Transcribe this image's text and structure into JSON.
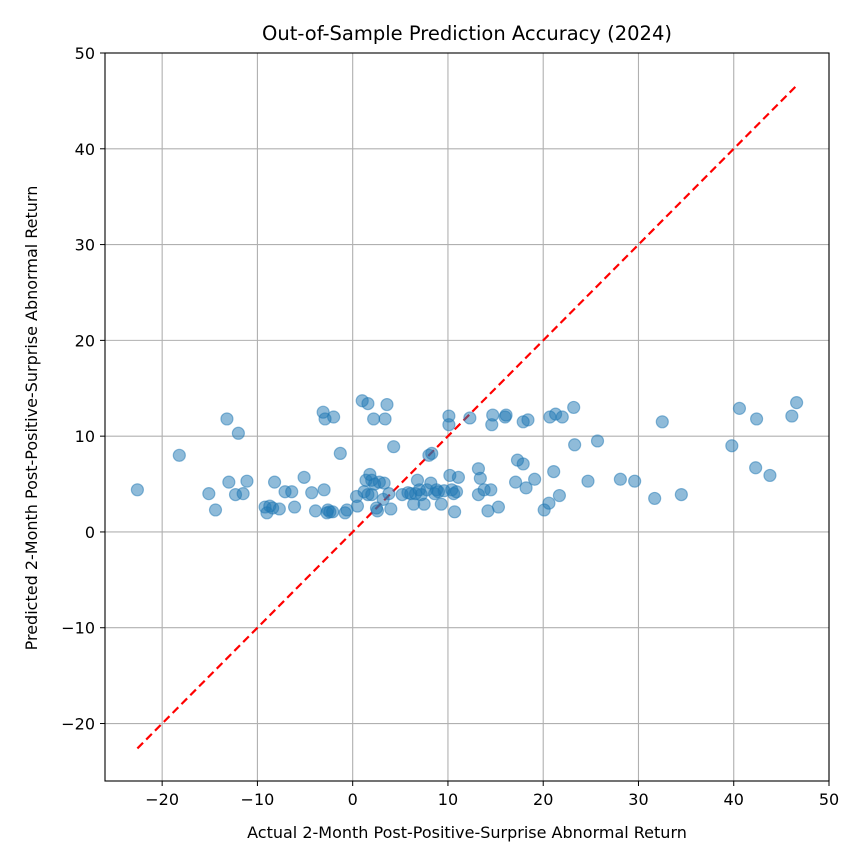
{
  "chart_data": {
    "type": "scatter",
    "title": "Out-of-Sample Prediction Accuracy (2024)",
    "xlabel": "Actual 2-Month Post-Positive-Surprise Abnormal Return",
    "ylabel": "Predicted 2-Month Post-Positive-Surprise Abnormal Return",
    "xlim": [
      -26,
      50
    ],
    "ylim": [
      -26,
      50
    ],
    "xticks": [
      -20,
      -10,
      0,
      10,
      20,
      30,
      40,
      50
    ],
    "yticks": [
      -20,
      -10,
      0,
      10,
      20,
      30,
      40,
      50
    ],
    "grid": true,
    "point_color": "#1f77b4",
    "reference_line": {
      "style": "dashed",
      "color": "#ff0000",
      "from": [
        -22.6,
        -22.6
      ],
      "to": [
        46.6,
        46.6
      ]
    },
    "points": [
      [
        -22.6,
        4.4
      ],
      [
        -18.2,
        8.0
      ],
      [
        -15.1,
        4.0
      ],
      [
        -14.4,
        2.3
      ],
      [
        -13.2,
        11.8
      ],
      [
        -13.0,
        5.2
      ],
      [
        -12.3,
        3.9
      ],
      [
        -12.0,
        10.3
      ],
      [
        -11.5,
        4.0
      ],
      [
        -11.1,
        5.3
      ],
      [
        -9.2,
        2.6
      ],
      [
        -9.0,
        2.0
      ],
      [
        -8.7,
        2.7
      ],
      [
        -8.4,
        2.5
      ],
      [
        -8.2,
        5.2
      ],
      [
        -7.7,
        2.4
      ],
      [
        -7.1,
        4.2
      ],
      [
        -6.4,
        4.2
      ],
      [
        -6.1,
        2.6
      ],
      [
        -5.1,
        5.7
      ],
      [
        -4.3,
        4.1
      ],
      [
        -3.9,
        2.2
      ],
      [
        -3.1,
        12.5
      ],
      [
        -3.0,
        4.4
      ],
      [
        -2.9,
        11.8
      ],
      [
        -2.6,
        2.3
      ],
      [
        -2.7,
        2.0
      ],
      [
        -2.4,
        2.1
      ],
      [
        -2.1,
        2.1
      ],
      [
        -2.0,
        12.0
      ],
      [
        -1.3,
        8.2
      ],
      [
        -0.8,
        2.0
      ],
      [
        -0.6,
        2.3
      ],
      [
        0.4,
        3.7
      ],
      [
        0.5,
        2.7
      ],
      [
        1.0,
        13.7
      ],
      [
        1.2,
        4.2
      ],
      [
        1.4,
        5.4
      ],
      [
        1.6,
        13.4
      ],
      [
        1.8,
        6.0
      ],
      [
        1.6,
        3.9
      ],
      [
        2.0,
        3.9
      ],
      [
        2.0,
        5.4
      ],
      [
        2.2,
        11.8
      ],
      [
        2.3,
        5.0
      ],
      [
        2.5,
        2.5
      ],
      [
        2.6,
        2.2
      ],
      [
        2.8,
        5.2
      ],
      [
        3.2,
        3.4
      ],
      [
        3.3,
        5.1
      ],
      [
        3.4,
        11.8
      ],
      [
        3.6,
        13.3
      ],
      [
        3.8,
        4.0
      ],
      [
        4.0,
        2.4
      ],
      [
        4.3,
        8.9
      ],
      [
        5.2,
        3.9
      ],
      [
        5.8,
        4.1
      ],
      [
        6.1,
        4.0
      ],
      [
        6.4,
        2.9
      ],
      [
        6.6,
        4.0
      ],
      [
        6.8,
        5.4
      ],
      [
        7.0,
        4.4
      ],
      [
        7.2,
        3.9
      ],
      [
        7.5,
        2.9
      ],
      [
        7.8,
        4.4
      ],
      [
        8.0,
        8.0
      ],
      [
        8.2,
        5.1
      ],
      [
        8.3,
        8.2
      ],
      [
        8.6,
        4.0
      ],
      [
        8.8,
        4.4
      ],
      [
        9.0,
        4.2
      ],
      [
        9.3,
        2.9
      ],
      [
        9.6,
        4.3
      ],
      [
        10.1,
        12.1
      ],
      [
        10.1,
        11.2
      ],
      [
        10.2,
        5.9
      ],
      [
        10.4,
        4.4
      ],
      [
        10.6,
        4.0
      ],
      [
        10.7,
        2.1
      ],
      [
        10.9,
        4.2
      ],
      [
        11.1,
        5.7
      ],
      [
        12.3,
        11.9
      ],
      [
        13.2,
        6.6
      ],
      [
        13.2,
        3.9
      ],
      [
        13.4,
        5.6
      ],
      [
        13.8,
        4.4
      ],
      [
        14.2,
        2.2
      ],
      [
        14.5,
        4.4
      ],
      [
        14.6,
        11.2
      ],
      [
        14.7,
        12.2
      ],
      [
        15.3,
        2.6
      ],
      [
        16.0,
        12.0
      ],
      [
        16.1,
        12.2
      ],
      [
        17.1,
        5.2
      ],
      [
        17.3,
        7.5
      ],
      [
        17.9,
        11.5
      ],
      [
        17.9,
        7.1
      ],
      [
        18.2,
        4.6
      ],
      [
        18.4,
        11.7
      ],
      [
        19.1,
        5.5
      ],
      [
        20.1,
        2.3
      ],
      [
        20.6,
        3.0
      ],
      [
        20.7,
        12.0
      ],
      [
        21.1,
        6.3
      ],
      [
        21.3,
        12.3
      ],
      [
        21.7,
        3.8
      ],
      [
        22.0,
        12.0
      ],
      [
        23.2,
        13.0
      ],
      [
        23.3,
        9.1
      ],
      [
        24.7,
        5.3
      ],
      [
        25.7,
        9.5
      ],
      [
        28.1,
        5.5
      ],
      [
        29.6,
        5.3
      ],
      [
        31.7,
        3.5
      ],
      [
        32.5,
        11.5
      ],
      [
        34.5,
        3.9
      ],
      [
        39.8,
        9.0
      ],
      [
        40.6,
        12.9
      ],
      [
        42.3,
        6.7
      ],
      [
        42.4,
        11.8
      ],
      [
        43.8,
        5.9
      ],
      [
        46.1,
        12.1
      ],
      [
        46.6,
        13.5
      ]
    ]
  }
}
